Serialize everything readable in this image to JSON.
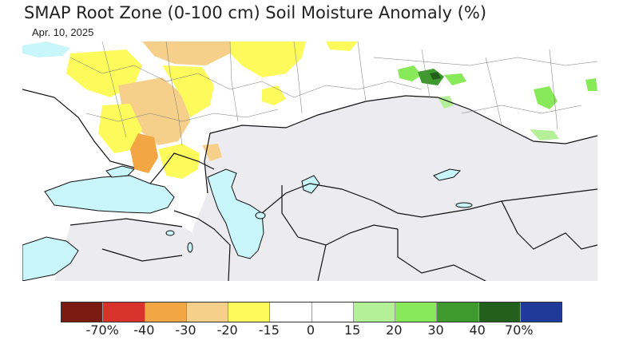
{
  "title": "SMAP Root Zone (0-100 cm) Soil Moisture Anomaly (%)",
  "date": "Apr. 10, 2025",
  "legend": {
    "colors": [
      "#7a1a10",
      "#d8332a",
      "#f2a644",
      "#f6d08a",
      "#fdfb5c",
      "#ffffff",
      "#ffffff",
      "#b4f098",
      "#88ea58",
      "#3f9a2e",
      "#22601c",
      "#1f3a98"
    ],
    "labels": [
      "-70%",
      "-40",
      "-30",
      "-20",
      "-15",
      "0",
      "15",
      "20",
      "30",
      "40",
      "70%"
    ]
  },
  "colors": {
    "land": "#ecebf0",
    "water": "#c8f6fb",
    "border": "#111111"
  }
}
